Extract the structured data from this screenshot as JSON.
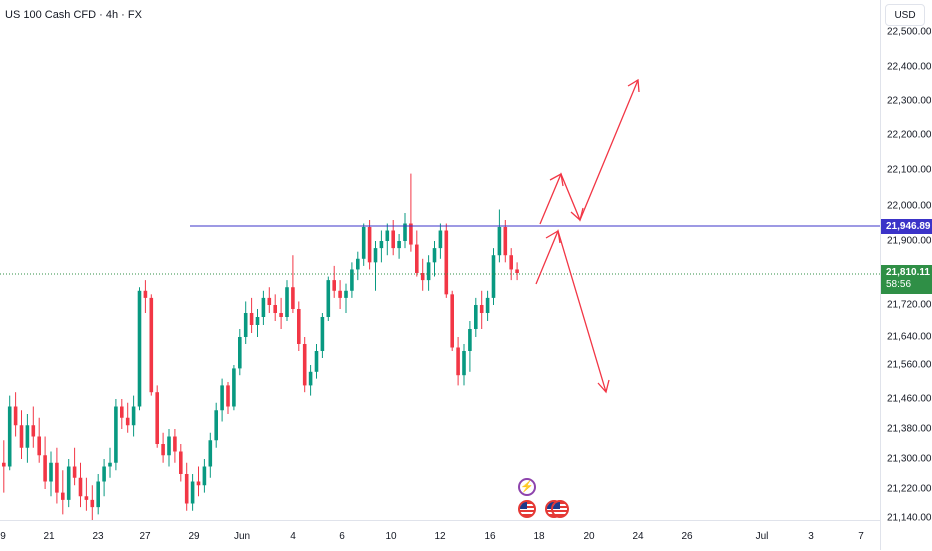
{
  "header": {
    "symbol_title": "US 100 Cash CFD · 4h · FX",
    "currency": "USD"
  },
  "price_tags": {
    "level": "21,946.89",
    "last_price": "21,810.11",
    "countdown": "58:56"
  },
  "colors": {
    "up": "#089981",
    "down": "#f23645",
    "level_line": "#3b33c8",
    "last_line": "#2f8f46",
    "arrow": "#f23645"
  },
  "icons": [
    "lightning-event-icon",
    "us-flag-event-icon",
    "us-flag-event-icon",
    "us-flag-event-icon"
  ],
  "chart_data": {
    "type": "candlestick",
    "y_tick_labels": [
      "22,500.00",
      "22,400.00",
      "22,300.00",
      "22,200.00",
      "22,100.00",
      "22,000.00",
      "21,900.00",
      "21,810.00",
      "21,720.00",
      "21,640.00",
      "21,560.00",
      "21,460.00",
      "21,380.00",
      "21,300.00",
      "21,220.00",
      "21,140.00"
    ],
    "x_tick_labels": [
      "9",
      "21",
      "23",
      "27",
      "29",
      "Jun",
      "4",
      "6",
      "10",
      "12",
      "16",
      "18",
      "20",
      "24",
      "26",
      "Jul",
      "3",
      "7"
    ],
    "horizontal_level": 21946.89,
    "last_price": 21810.11,
    "candles": [
      [
        21290,
        21350,
        21210,
        21280
      ],
      [
        21280,
        21470,
        21270,
        21440
      ],
      [
        21440,
        21480,
        21360,
        21390
      ],
      [
        21390,
        21430,
        21300,
        21330
      ],
      [
        21330,
        21420,
        21290,
        21390
      ],
      [
        21390,
        21440,
        21330,
        21360
      ],
      [
        21360,
        21410,
        21290,
        21310
      ],
      [
        21310,
        21360,
        21220,
        21240
      ],
      [
        21240,
        21320,
        21200,
        21290
      ],
      [
        21290,
        21330,
        21180,
        21210
      ],
      [
        21210,
        21270,
        21150,
        21190
      ],
      [
        21190,
        21300,
        21170,
        21280
      ],
      [
        21280,
        21330,
        21230,
        21250
      ],
      [
        21250,
        21290,
        21170,
        21200
      ],
      [
        21200,
        21250,
        21160,
        21190
      ],
      [
        21190,
        21230,
        21120,
        21170
      ],
      [
        21170,
        21260,
        21150,
        21240
      ],
      [
        21240,
        21300,
        21200,
        21280
      ],
      [
        21280,
        21330,
        21250,
        21290
      ],
      [
        21290,
        21460,
        21270,
        21440
      ],
      [
        21440,
        21460,
        21380,
        21410
      ],
      [
        21410,
        21450,
        21370,
        21390
      ],
      [
        21390,
        21470,
        21360,
        21440
      ],
      [
        21440,
        21770,
        21430,
        21760
      ],
      [
        21760,
        21790,
        21700,
        21740
      ],
      [
        21740,
        21750,
        21470,
        21480
      ],
      [
        21480,
        21500,
        21330,
        21340
      ],
      [
        21340,
        21370,
        21290,
        21310
      ],
      [
        21310,
        21380,
        21280,
        21360
      ],
      [
        21360,
        21380,
        21290,
        21320
      ],
      [
        21320,
        21340,
        21240,
        21260
      ],
      [
        21260,
        21290,
        21160,
        21180
      ],
      [
        21180,
        21260,
        21160,
        21240
      ],
      [
        21240,
        21280,
        21200,
        21230
      ],
      [
        21230,
        21300,
        21210,
        21280
      ],
      [
        21280,
        21370,
        21250,
        21350
      ],
      [
        21350,
        21450,
        21330,
        21430
      ],
      [
        21430,
        21520,
        21400,
        21500
      ],
      [
        21500,
        21510,
        21420,
        21440
      ],
      [
        21440,
        21560,
        21430,
        21550
      ],
      [
        21550,
        21660,
        21530,
        21640
      ],
      [
        21640,
        21730,
        21620,
        21700
      ],
      [
        21700,
        21740,
        21650,
        21670
      ],
      [
        21670,
        21710,
        21640,
        21690
      ],
      [
        21690,
        21760,
        21670,
        21740
      ],
      [
        21740,
        21770,
        21700,
        21720
      ],
      [
        21720,
        21750,
        21680,
        21700
      ],
      [
        21700,
        21740,
        21660,
        21690
      ],
      [
        21690,
        21790,
        21680,
        21770
      ],
      [
        21770,
        21860,
        21700,
        21710
      ],
      [
        21710,
        21730,
        21600,
        21620
      ],
      [
        21620,
        21640,
        21480,
        21500
      ],
      [
        21500,
        21560,
        21470,
        21540
      ],
      [
        21540,
        21620,
        21520,
        21600
      ],
      [
        21600,
        21700,
        21580,
        21690
      ],
      [
        21690,
        21800,
        21680,
        21790
      ],
      [
        21790,
        21830,
        21740,
        21760
      ],
      [
        21760,
        21790,
        21710,
        21740
      ],
      [
        21740,
        21780,
        21700,
        21760
      ],
      [
        21760,
        21840,
        21740,
        21820
      ],
      [
        21820,
        21870,
        21790,
        21850
      ],
      [
        21850,
        21950,
        21830,
        21940
      ],
      [
        21940,
        21960,
        21820,
        21840
      ],
      [
        21840,
        21900,
        21760,
        21880
      ],
      [
        21880,
        21930,
        21840,
        21900
      ],
      [
        21900,
        21950,
        21860,
        21930
      ],
      [
        21930,
        21960,
        21860,
        21880
      ],
      [
        21880,
        21920,
        21850,
        21900
      ],
      [
        21900,
        21980,
        21880,
        21950
      ],
      [
        21950,
        22090,
        21870,
        21890
      ],
      [
        21890,
        21930,
        21800,
        21810
      ],
      [
        21810,
        21850,
        21760,
        21790
      ],
      [
        21790,
        21860,
        21760,
        21840
      ],
      [
        21840,
        21900,
        21800,
        21880
      ],
      [
        21880,
        21950,
        21850,
        21930
      ],
      [
        21930,
        21950,
        21740,
        21750
      ],
      [
        21750,
        21760,
        21600,
        21610
      ],
      [
        21610,
        21640,
        21500,
        21530
      ],
      [
        21530,
        21620,
        21500,
        21600
      ],
      [
        21600,
        21680,
        21540,
        21660
      ],
      [
        21660,
        21740,
        21640,
        21720
      ],
      [
        21720,
        21760,
        21660,
        21700
      ],
      [
        21700,
        21760,
        21680,
        21740
      ],
      [
        21740,
        21880,
        21720,
        21860
      ],
      [
        21860,
        21990,
        21840,
        21940
      ],
      [
        21940,
        21960,
        21840,
        21860
      ],
      [
        21860,
        21880,
        21790,
        21820
      ],
      [
        21820,
        21840,
        21790,
        21810
      ]
    ]
  }
}
